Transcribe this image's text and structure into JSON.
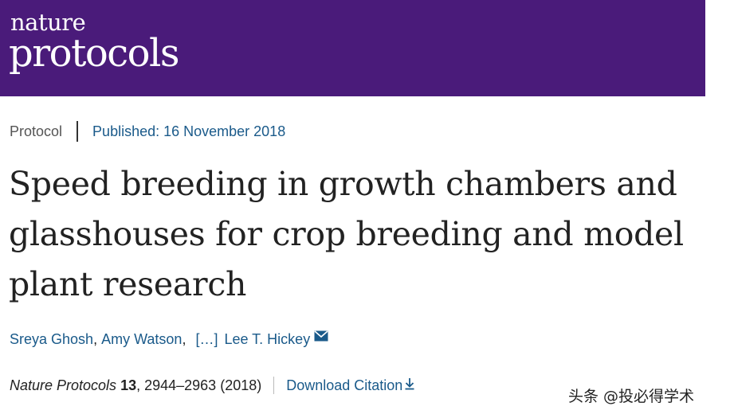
{
  "header": {
    "brand_top": "nature",
    "brand_bottom": "protocols",
    "background_color": "#4a1b7a"
  },
  "meta": {
    "article_type": "Protocol",
    "published": "Published: 16 November 2018"
  },
  "article": {
    "title": "Speed breeding in growth chambers and glasshouses for crop breeding and model plant research"
  },
  "authors": {
    "list": [
      "Sreya Ghosh",
      "Amy Watson"
    ],
    "separator": ",",
    "ellipsis": "[…]",
    "corresponding": "Lee T. Hickey",
    "mail_icon": "envelope-icon"
  },
  "citation": {
    "journal": "Nature Protocols",
    "volume": "13",
    "details": ", 2944–2963 (2018)",
    "download_label": "Download Citation",
    "download_icon": "download-arrow-icon"
  },
  "watermark": "头条 @投必得学术",
  "colors": {
    "link": "#1a5a8a",
    "text": "#222222"
  }
}
